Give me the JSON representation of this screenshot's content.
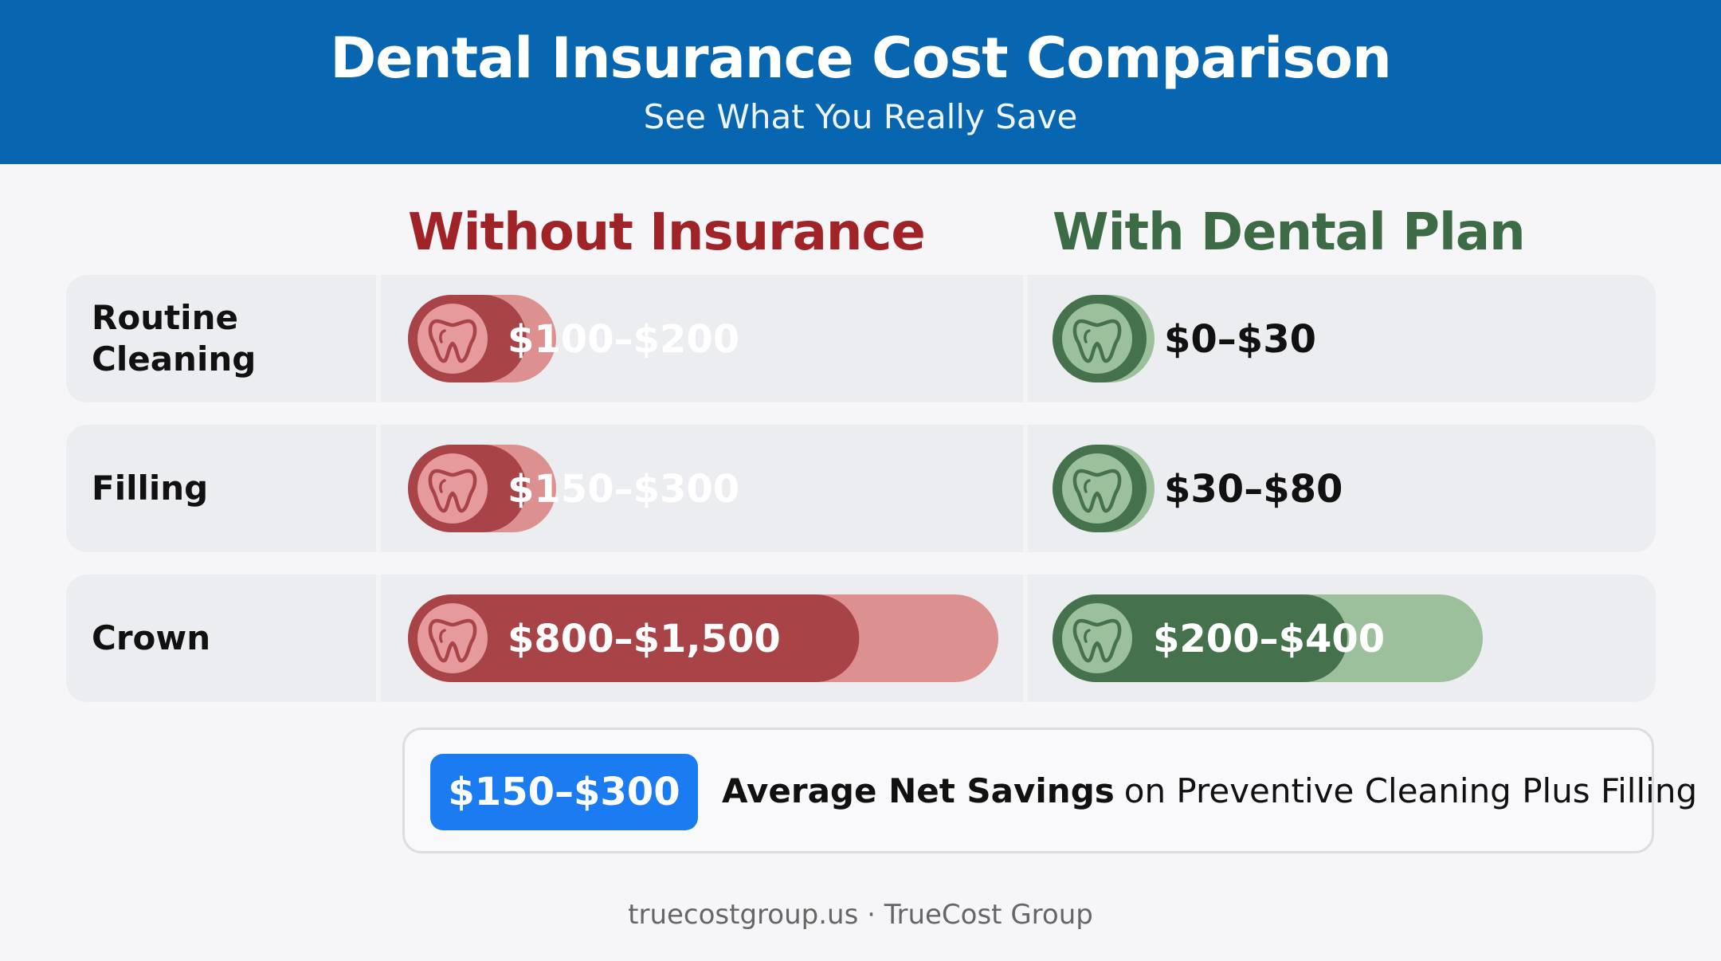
{
  "header": {
    "title": "Dental Insurance Cost Comparison",
    "subtitle": "See What You Really Save"
  },
  "columns": {
    "without": {
      "label": "Without Insurance",
      "color": "#a02427"
    },
    "with": {
      "label": "With Dental Plan",
      "color": "#3d6b45"
    }
  },
  "chart_data": {
    "type": "bar",
    "title": "Dental Insurance Cost Comparison",
    "subtitle": "See What You Really Save",
    "categories": [
      "Routine Cleaning",
      "Filling",
      "Crown"
    ],
    "series": [
      {
        "name": "Without Insurance",
        "ranges": [
          [
            100,
            200
          ],
          [
            150,
            300
          ],
          [
            800,
            1500
          ]
        ],
        "labels": [
          "$100–$200",
          "$150–$300",
          "$800–$1,500"
        ]
      },
      {
        "name": "With Dental Plan",
        "ranges": [
          [
            0,
            30
          ],
          [
            30,
            80
          ],
          [
            200,
            400
          ]
        ],
        "labels": [
          "$0–$30",
          "$30–$80",
          "$200–$400"
        ]
      }
    ],
    "units": "USD"
  },
  "colors": {
    "header_bg": "#0865b0",
    "without_dark": "#a84347",
    "without_light": "#dc9090",
    "with_dark": "#45724d",
    "with_light": "#9cc09c",
    "savings_pill": "#1b7cf2"
  },
  "icons": {
    "bar_icon": "tooth-icon"
  },
  "savings": {
    "value": "$150–$300",
    "bold_text": "Average Net Savings",
    "rest_text": "on Preventive Cleaning Plus Filling"
  },
  "footer": "truecostgroup.us · TrueCost Group"
}
